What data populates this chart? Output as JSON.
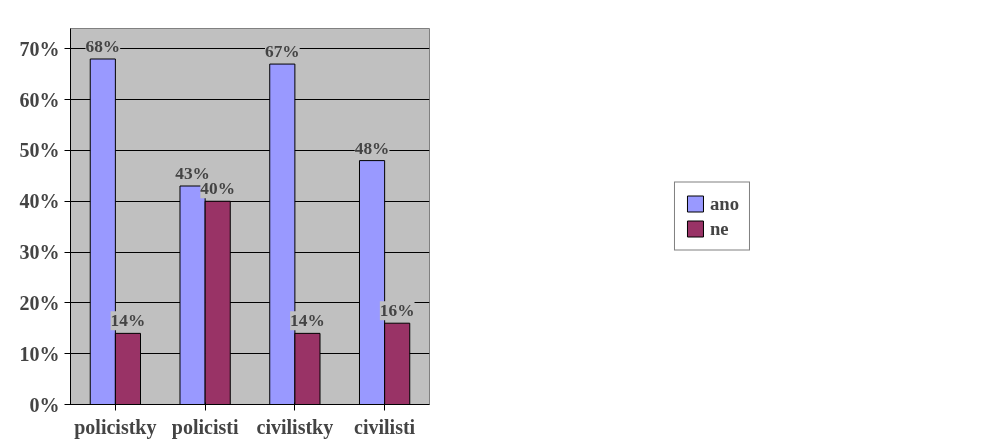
{
  "chart_data": {
    "type": "bar",
    "categories": [
      "policistky",
      "policisti",
      "civilistky",
      "civilisti"
    ],
    "series": [
      {
        "name": "ano",
        "color": "#9999ff",
        "values": [
          68,
          43,
          67,
          48
        ],
        "value_labels": [
          "68%",
          "43%",
          "67%",
          "48%"
        ]
      },
      {
        "name": "ne",
        "color": "#993366",
        "values": [
          14,
          40,
          14,
          16
        ],
        "value_labels": [
          "14%",
          "40%",
          "14%",
          "16%"
        ]
      }
    ],
    "ylim": [
      0,
      74
    ],
    "yticks": [
      {
        "value": 0,
        "label": "0%"
      },
      {
        "value": 10,
        "label": "10%"
      },
      {
        "value": 20,
        "label": "20%"
      },
      {
        "value": 30,
        "label": "30%"
      },
      {
        "value": 40,
        "label": "40%"
      },
      {
        "value": 50,
        "label": "50%"
      },
      {
        "value": 60,
        "label": "60%"
      },
      {
        "value": 70,
        "label": "70%"
      }
    ],
    "grid": "y",
    "legend": "right"
  }
}
